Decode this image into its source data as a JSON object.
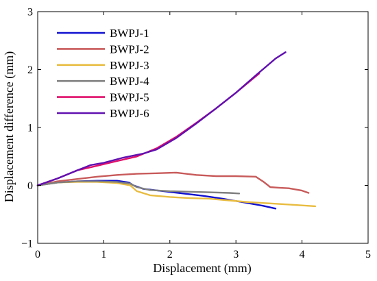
{
  "chart_data": {
    "type": "line",
    "xlabel": "Displacement (mm)",
    "ylabel": "Displacement difference (mm)",
    "xlim": [
      0,
      5
    ],
    "ylim": [
      -1,
      3
    ],
    "xticks": [
      0,
      1,
      2,
      3,
      4,
      5
    ],
    "yticks": [
      -1,
      0,
      1,
      2,
      3
    ],
    "grid": false,
    "legend_position": "top-left",
    "series": [
      {
        "name": "BWPJ-1",
        "color": "#1010d0",
        "x": [
          0,
          0.3,
          0.6,
          0.9,
          1.2,
          1.38,
          1.45,
          1.6,
          1.9,
          2.2,
          2.5,
          2.8,
          3.1,
          3.4,
          3.6
        ],
        "y": [
          0,
          0.05,
          0.07,
          0.08,
          0.08,
          0.05,
          0.0,
          -0.06,
          -0.1,
          -0.14,
          -0.18,
          -0.23,
          -0.29,
          -0.35,
          -0.4
        ]
      },
      {
        "name": "BWPJ-2",
        "color": "#c85a5a",
        "x": [
          0,
          0.3,
          0.6,
          0.9,
          1.2,
          1.5,
          1.8,
          2.1,
          2.4,
          2.7,
          3.0,
          3.3,
          3.42,
          3.52,
          3.65,
          3.8,
          4.0,
          4.1
        ],
        "y": [
          0,
          0.07,
          0.11,
          0.15,
          0.18,
          0.2,
          0.21,
          0.22,
          0.18,
          0.16,
          0.16,
          0.15,
          0.06,
          -0.03,
          -0.04,
          -0.05,
          -0.09,
          -0.13
        ]
      },
      {
        "name": "BWPJ-3",
        "color": "#e8bc40",
        "x": [
          0,
          0.3,
          0.6,
          0.9,
          1.2,
          1.4,
          1.5,
          1.7,
          2.0,
          2.3,
          2.6,
          2.9,
          3.2,
          3.5,
          3.8,
          4.2
        ],
        "y": [
          0,
          0.05,
          0.06,
          0.06,
          0.04,
          0.0,
          -0.1,
          -0.17,
          -0.2,
          -0.22,
          -0.23,
          -0.26,
          -0.29,
          -0.31,
          -0.33,
          -0.36
        ]
      },
      {
        "name": "BWPJ-4",
        "color": "#7f7f7f",
        "x": [
          0,
          0.3,
          0.6,
          0.9,
          1.2,
          1.4,
          1.5,
          1.7,
          2.0,
          2.3,
          2.6,
          2.9,
          3.05
        ],
        "y": [
          0,
          0.05,
          0.07,
          0.07,
          0.06,
          0.03,
          -0.03,
          -0.08,
          -0.1,
          -0.11,
          -0.12,
          -0.13,
          -0.14
        ]
      },
      {
        "name": "BWPJ-5",
        "color": "#e0106a",
        "x": [
          0,
          0.3,
          0.6,
          0.9,
          1.2,
          1.5,
          1.8,
          2.1,
          2.4,
          2.7,
          3.0,
          3.35
        ],
        "y": [
          0,
          0.12,
          0.26,
          0.34,
          0.42,
          0.5,
          0.64,
          0.84,
          1.08,
          1.33,
          1.6,
          1.93
        ]
      },
      {
        "name": "BWPJ-6",
        "color": "#6010b0",
        "x": [
          0,
          0.3,
          0.6,
          0.8,
          1.0,
          1.3,
          1.6,
          1.8,
          2.1,
          2.4,
          2.7,
          3.0,
          3.3,
          3.6,
          3.75
        ],
        "y": [
          0,
          0.12,
          0.26,
          0.35,
          0.39,
          0.48,
          0.55,
          0.62,
          0.82,
          1.07,
          1.33,
          1.6,
          1.9,
          2.19,
          2.3
        ]
      }
    ]
  }
}
